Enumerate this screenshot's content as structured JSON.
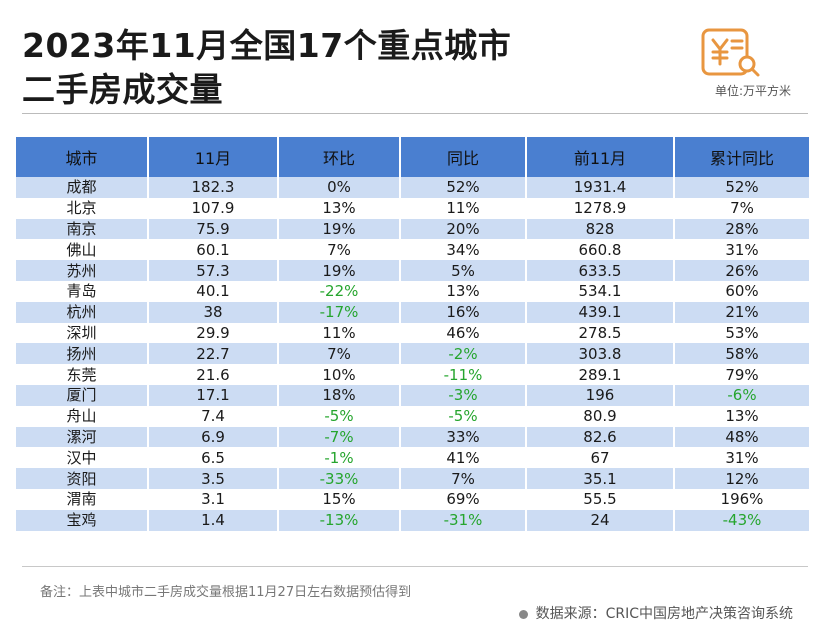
{
  "title": {
    "line1": "2023年11月全国17个重点城市",
    "line2": "二手房成交量"
  },
  "unit_label": "单位:万平方米",
  "logo_icon": "price-document-search-icon",
  "accent_color": "#e89640",
  "header_color": "#4a7fd0",
  "stripe_color": "#ccdcf3",
  "negative_color": "#26a52e",
  "table": {
    "headers": [
      "城市",
      "11月",
      "环比",
      "同比",
      "前11月",
      "累计同比"
    ],
    "rows": [
      [
        "成都",
        "182.3",
        "0%",
        "52%",
        "1931.4",
        "52%"
      ],
      [
        "北京",
        "107.9",
        "13%",
        "11%",
        "1278.9",
        "7%"
      ],
      [
        "南京",
        "75.9",
        "19%",
        "20%",
        "828",
        "28%"
      ],
      [
        "佛山",
        "60.1",
        "7%",
        "34%",
        "660.8",
        "31%"
      ],
      [
        "苏州",
        "57.3",
        "19%",
        "5%",
        "633.5",
        "26%"
      ],
      [
        "青岛",
        "40.1",
        "-22%",
        "13%",
        "534.1",
        "60%"
      ],
      [
        "杭州",
        "38",
        "-17%",
        "16%",
        "439.1",
        "21%"
      ],
      [
        "深圳",
        "29.9",
        "11%",
        "46%",
        "278.5",
        "53%"
      ],
      [
        "扬州",
        "22.7",
        "7%",
        "-2%",
        "303.8",
        "58%"
      ],
      [
        "东莞",
        "21.6",
        "10%",
        "-11%",
        "289.1",
        "79%"
      ],
      [
        "厦门",
        "17.1",
        "18%",
        "-3%",
        "196",
        "-6%"
      ],
      [
        "舟山",
        "7.4",
        "-5%",
        "-5%",
        "80.9",
        "13%"
      ],
      [
        "漯河",
        "6.9",
        "-7%",
        "33%",
        "82.6",
        "48%"
      ],
      [
        "汉中",
        "6.5",
        "-1%",
        "41%",
        "67",
        "31%"
      ],
      [
        "资阳",
        "3.5",
        "-33%",
        "7%",
        "35.1",
        "12%"
      ],
      [
        "渭南",
        "3.1",
        "15%",
        "69%",
        "55.5",
        "196%"
      ],
      [
        "宝鸡",
        "1.4",
        "-13%",
        "-31%",
        "24",
        "-43%"
      ]
    ]
  },
  "note": "备注：上表中城市二手房成交量根据11月27日左右数据预估得到",
  "source": "数据来源：CRIC中国房地产决策咨询系统"
}
